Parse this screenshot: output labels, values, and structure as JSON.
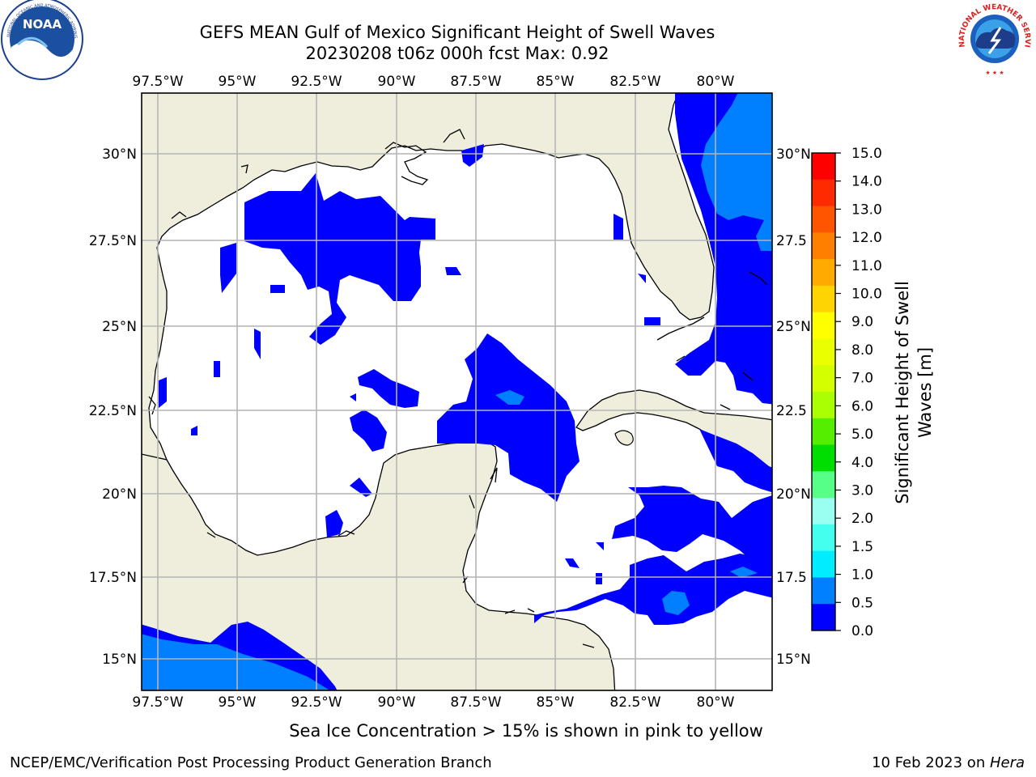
{
  "header": {
    "title_line1": "GEFS MEAN Gulf of Mexico Significant Height of Swell Waves",
    "title_line2": "20230208 t06z 000h fcst   Max: 0.92"
  },
  "logos": {
    "noaa_text": "NOAA",
    "noaa_ring_text": "NATIONAL OCEANIC AND ATMOSPHERIC ADMINISTRATION · U.S. DEPARTMENT OF COMMERCE",
    "nws_ring_text": "NATIONAL WEATHER SERVICE"
  },
  "map": {
    "lon_labels": [
      "97.5°W",
      "95°W",
      "92.5°W",
      "90°W",
      "87.5°W",
      "85°W",
      "82.5°W",
      "80°W"
    ],
    "lat_labels_left": [
      "30°N",
      "27.5°N",
      "25°N",
      "22.5°N",
      "20°N",
      "17.5°N",
      "15°N"
    ],
    "lat_labels_right": [
      "30°N",
      "27.5",
      "25°N",
      "22.5",
      "20°N",
      "17.5",
      "15°N"
    ],
    "colors": {
      "land": "#efeedd",
      "ocean": "#ffffff",
      "grid": "#b4b4b4"
    }
  },
  "colorbar": {
    "label": "Significant Height of Swell Waves [m]",
    "label_line1": "Significant Height of Swell",
    "label_line2": "Waves [m]",
    "ticks": [
      "15.0",
      "14.0",
      "13.0",
      "12.0",
      "11.0",
      "10.0",
      "9.0",
      "8.0",
      "7.0",
      "6.0",
      "5.0",
      "4.0",
      "3.0",
      "2.0",
      "1.5",
      "1.0",
      "0.5",
      "0.0"
    ],
    "colors_top_to_bottom": [
      "#ff0000",
      "#ff2a00",
      "#ff5500",
      "#ff8000",
      "#ffaa00",
      "#ffd400",
      "#ffff00",
      "#eaff00",
      "#d4ff00",
      "#aaff00",
      "#55ee00",
      "#00dd00",
      "#55ff88",
      "#99fff0",
      "#44ffee",
      "#00eeff",
      "#0080ff",
      "#0000ff"
    ]
  },
  "note": "Sea Ice Concentration > 15% is shown in pink to yellow",
  "footer": {
    "left": "NCEP/EMC/Verification Post Processing Product Generation Branch",
    "right_prefix": "10 Feb 2023 on ",
    "right_host": "Hera"
  }
}
